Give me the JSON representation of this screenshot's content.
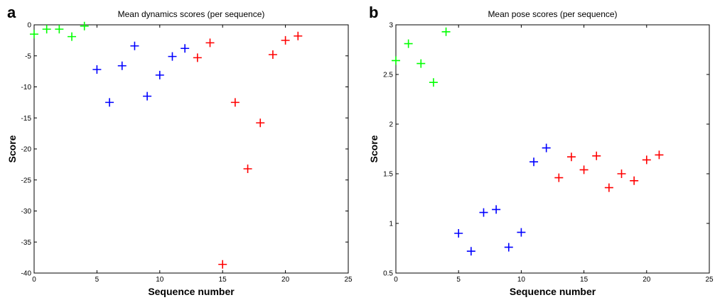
{
  "chart_data": [
    {
      "type": "scatter",
      "label": "a",
      "title": "Mean dynamics scores (per sequence)",
      "x_label": "Sequence number",
      "y_label": "Score",
      "xlim": [
        0,
        25
      ],
      "ylim": [
        -40,
        0
      ],
      "xticks": [
        0,
        5,
        10,
        15,
        20,
        25
      ],
      "yticks": [
        0,
        -5,
        -10,
        -15,
        -20,
        -25,
        -30,
        -35,
        -40
      ],
      "series": [
        {
          "color": "#00ff00",
          "x": [
            0,
            1,
            2,
            3,
            4
          ],
          "values": [
            -1.5,
            -0.7,
            -0.7,
            -1.9,
            -0.2
          ]
        },
        {
          "color": "#0000ff",
          "x": [
            5,
            6,
            7,
            8,
            9,
            10,
            11,
            12
          ],
          "values": [
            -7.2,
            -12.5,
            -6.6,
            -3.4,
            -11.5,
            -8.1,
            -5.1,
            -3.8
          ]
        },
        {
          "color": "#ff0000",
          "x": [
            13,
            14,
            15,
            16,
            17,
            18,
            19,
            20,
            21
          ],
          "values": [
            -5.3,
            -2.9,
            -38.6,
            -12.5,
            -23.2,
            -15.8,
            -4.8,
            -2.5,
            -1.8
          ]
        }
      ]
    },
    {
      "type": "scatter",
      "label": "b",
      "title": "Mean pose scores (per sequence)",
      "x_label": "Sequence number",
      "y_label": "Score",
      "xlim": [
        0,
        25
      ],
      "ylim": [
        0.5,
        3
      ],
      "xticks": [
        0,
        5,
        10,
        15,
        20,
        25
      ],
      "yticks": [
        0.5,
        1,
        1.5,
        2,
        2.5,
        3
      ],
      "series": [
        {
          "color": "#00ff00",
          "x": [
            0,
            1,
            2,
            3,
            4
          ],
          "values": [
            2.64,
            2.81,
            2.61,
            2.42,
            2.93
          ]
        },
        {
          "color": "#0000ff",
          "x": [
            5,
            6,
            7,
            8,
            9,
            10,
            11,
            12
          ],
          "values": [
            0.9,
            0.72,
            1.11,
            1.14,
            0.76,
            0.91,
            1.62,
            1.76
          ]
        },
        {
          "color": "#ff0000",
          "x": [
            13,
            14,
            15,
            16,
            17,
            18,
            19,
            20,
            21
          ],
          "values": [
            1.46,
            1.67,
            1.54,
            1.68,
            1.36,
            1.5,
            1.43,
            1.64,
            1.69
          ]
        }
      ]
    }
  ]
}
